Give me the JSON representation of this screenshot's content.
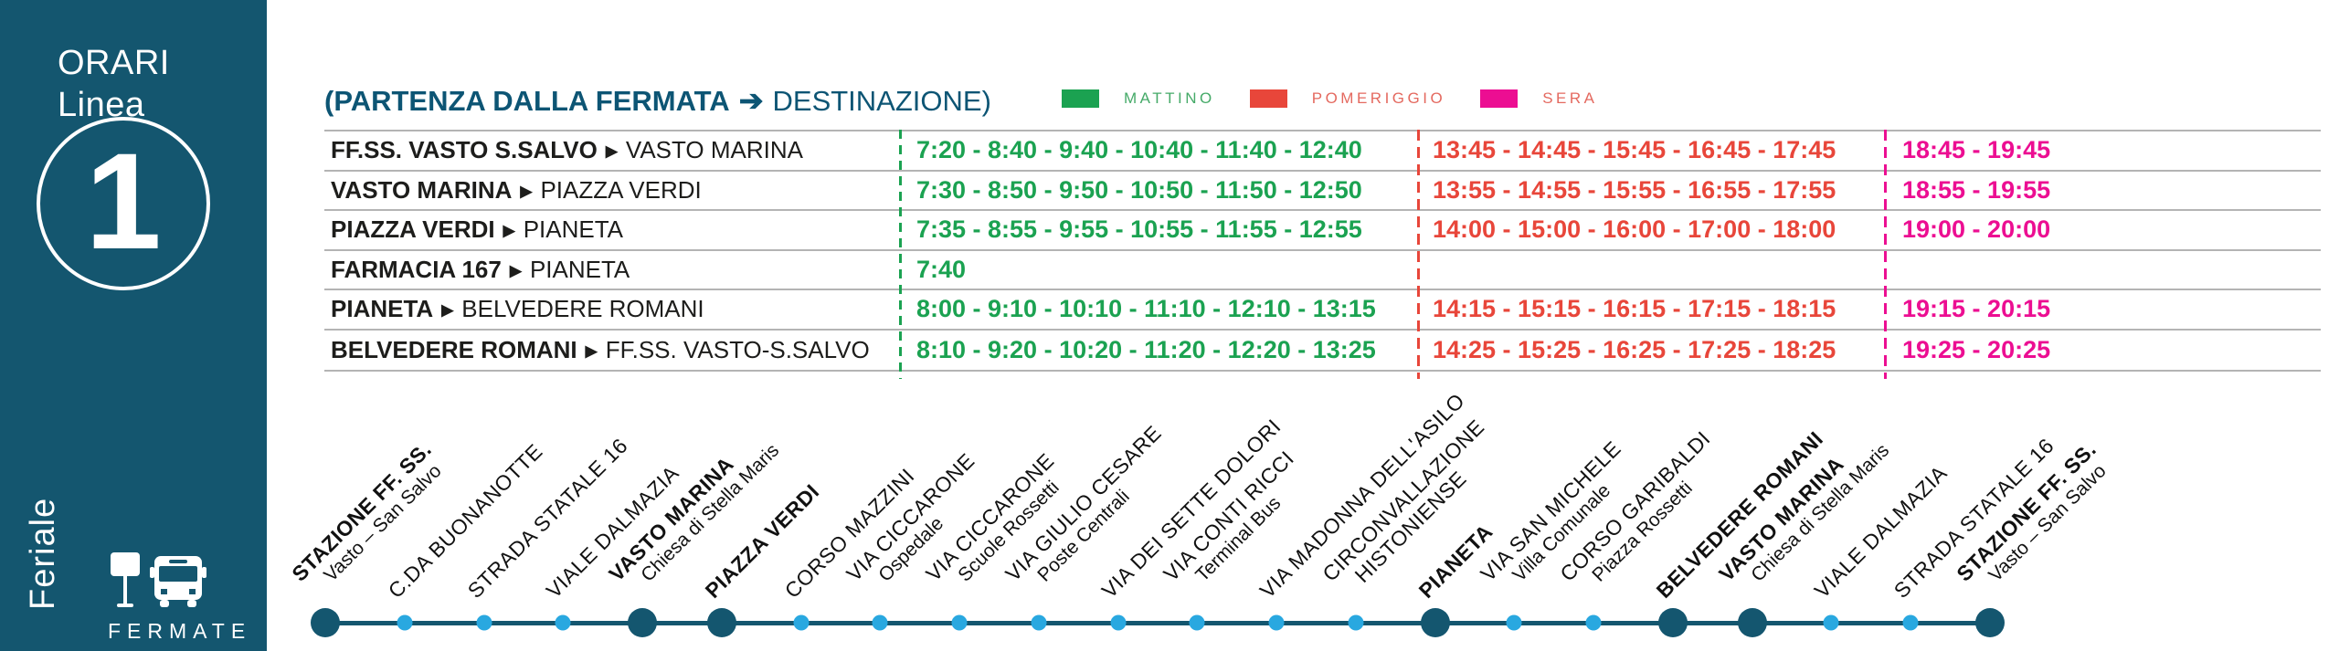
{
  "colors": {
    "teal": "#14566F",
    "header_text": "#0D5574",
    "green": "#1BA251",
    "red": "#E8463A",
    "magenta": "#EC0E92",
    "minor_dot_blue": "#29A8E0",
    "table_line": "#B4B4B4",
    "legend_green_text": "#45AA68",
    "legend_red_text": "#E4695F"
  },
  "sidebar": {
    "title_line1": "ORARI",
    "title_line2": "Linea",
    "line_number": "1",
    "service_label": "Feriale",
    "fermate_label": "FERMATE",
    "icons": [
      "bus-stop-sign-icon",
      "bus-icon"
    ]
  },
  "header": {
    "left": "(PARTENZA DALLA FERMATA",
    "arrow": "➔",
    "right": "DESTINAZIONE)"
  },
  "legend": [
    {
      "label": "MATTINO",
      "swatch": "#1BA251",
      "text_color": "#45AA68"
    },
    {
      "label": "POMERIGGIO",
      "swatch": "#E8463A",
      "text_color": "#E4695F"
    },
    {
      "label": "SERA",
      "swatch": "#EC0E92",
      "text_color": "#E4695F"
    }
  ],
  "timetable": {
    "row_arrow": "▶",
    "rows": [
      {
        "from": "FF.SS. VASTO S.SALVO",
        "to": "VASTO MARINA",
        "morning": "7:20 - 8:40 - 9:40 - 10:40 - 11:40 - 12:40",
        "afternoon": "13:45 - 14:45 - 15:45 - 16:45 - 17:45",
        "evening": "18:45 - 19:45"
      },
      {
        "from": "VASTO MARINA",
        "to": "PIAZZA VERDI",
        "morning": "7:30 - 8:50 - 9:50 - 10:50 - 11:50 - 12:50",
        "afternoon": "13:55 - 14:55 - 15:55 - 16:55 - 17:55",
        "evening": "18:55 - 19:55"
      },
      {
        "from": "PIAZZA VERDI",
        "to": "PIANETA",
        "morning": "7:35 - 8:55 - 9:55 - 10:55 - 11:55 - 12:55",
        "afternoon": "14:00 - 15:00 - 16:00 - 17:00 - 18:00",
        "evening": "19:00 - 20:00"
      },
      {
        "from": "FARMACIA 167",
        "to": "PIANETA",
        "morning": "7:40",
        "afternoon": "",
        "evening": ""
      },
      {
        "from": "PIANETA",
        "to": "BELVEDERE ROMANI",
        "morning": "8:00 - 9:10 - 10:10 - 11:10 - 12:10 - 13:15",
        "afternoon": "14:15 - 15:15 - 16:15 - 17:15 - 18:15",
        "evening": "19:15 - 20:15"
      },
      {
        "from": "BELVEDERE ROMANI",
        "to": "FF.SS. VASTO-S.SALVO",
        "morning": "8:10 - 9:20 - 10:20 - 11:20 - 12:20 - 13:25",
        "afternoon": "14:25 - 15:25 - 16:25 - 17:25 - 18:25",
        "evening": "19:25 - 20:25"
      }
    ]
  },
  "route": {
    "stops": [
      {
        "name": "STAZIONE FF. SS.",
        "sub": "Vasto – San Salvo",
        "major": true
      },
      {
        "name": "C.DA BUONANOTTE",
        "major": false
      },
      {
        "name": "STRADA STATALE 16",
        "major": false
      },
      {
        "name": "VIALE DALMAZIA",
        "major": false
      },
      {
        "name": "VASTO MARINA",
        "sub": "Chiesa di Stella Maris",
        "major": true
      },
      {
        "name": "PIAZZA VERDI",
        "major": true
      },
      {
        "name": "CORSO MAZZINI",
        "major": false
      },
      {
        "name": "VIA CICCARONE",
        "sub": "Ospedale",
        "major": false
      },
      {
        "name": "VIA CICCARONE",
        "sub": "Scuole Rossetti",
        "major": false
      },
      {
        "name": "VIA GIULIO CESARE",
        "sub": "Poste Centrali",
        "major": false
      },
      {
        "name": "VIA DEI SETTE DOLORI",
        "major": false
      },
      {
        "name": "VIA CONTI RICCI",
        "sub": "Terminal Bus",
        "major": false
      },
      {
        "name": "VIA MADONNA DELL'ASILO",
        "major": false
      },
      {
        "name": "CIRCONVALLAZIONE",
        "sub": "HISTONIENSE",
        "sub_caps": true,
        "major": false
      },
      {
        "name": "PIANETA",
        "major": true
      },
      {
        "name": "VIA SAN MICHELE",
        "sub": "Villa Comunale",
        "major": false
      },
      {
        "name": "CORSO GARIBALDI",
        "sub": "Piazza Rossetti",
        "major": false
      },
      {
        "name": "BELVEDERE ROMANI",
        "major": true
      },
      {
        "name": "VASTO MARINA",
        "sub": "Chiesa di Stella Maris",
        "major": true
      },
      {
        "name": "VIALE DALMAZIA",
        "major": false
      },
      {
        "name": "STRADA STATALE 16",
        "major": false
      },
      {
        "name": "STAZIONE FF. SS.",
        "sub": "Vasto – San Salvo",
        "major": true
      }
    ]
  }
}
